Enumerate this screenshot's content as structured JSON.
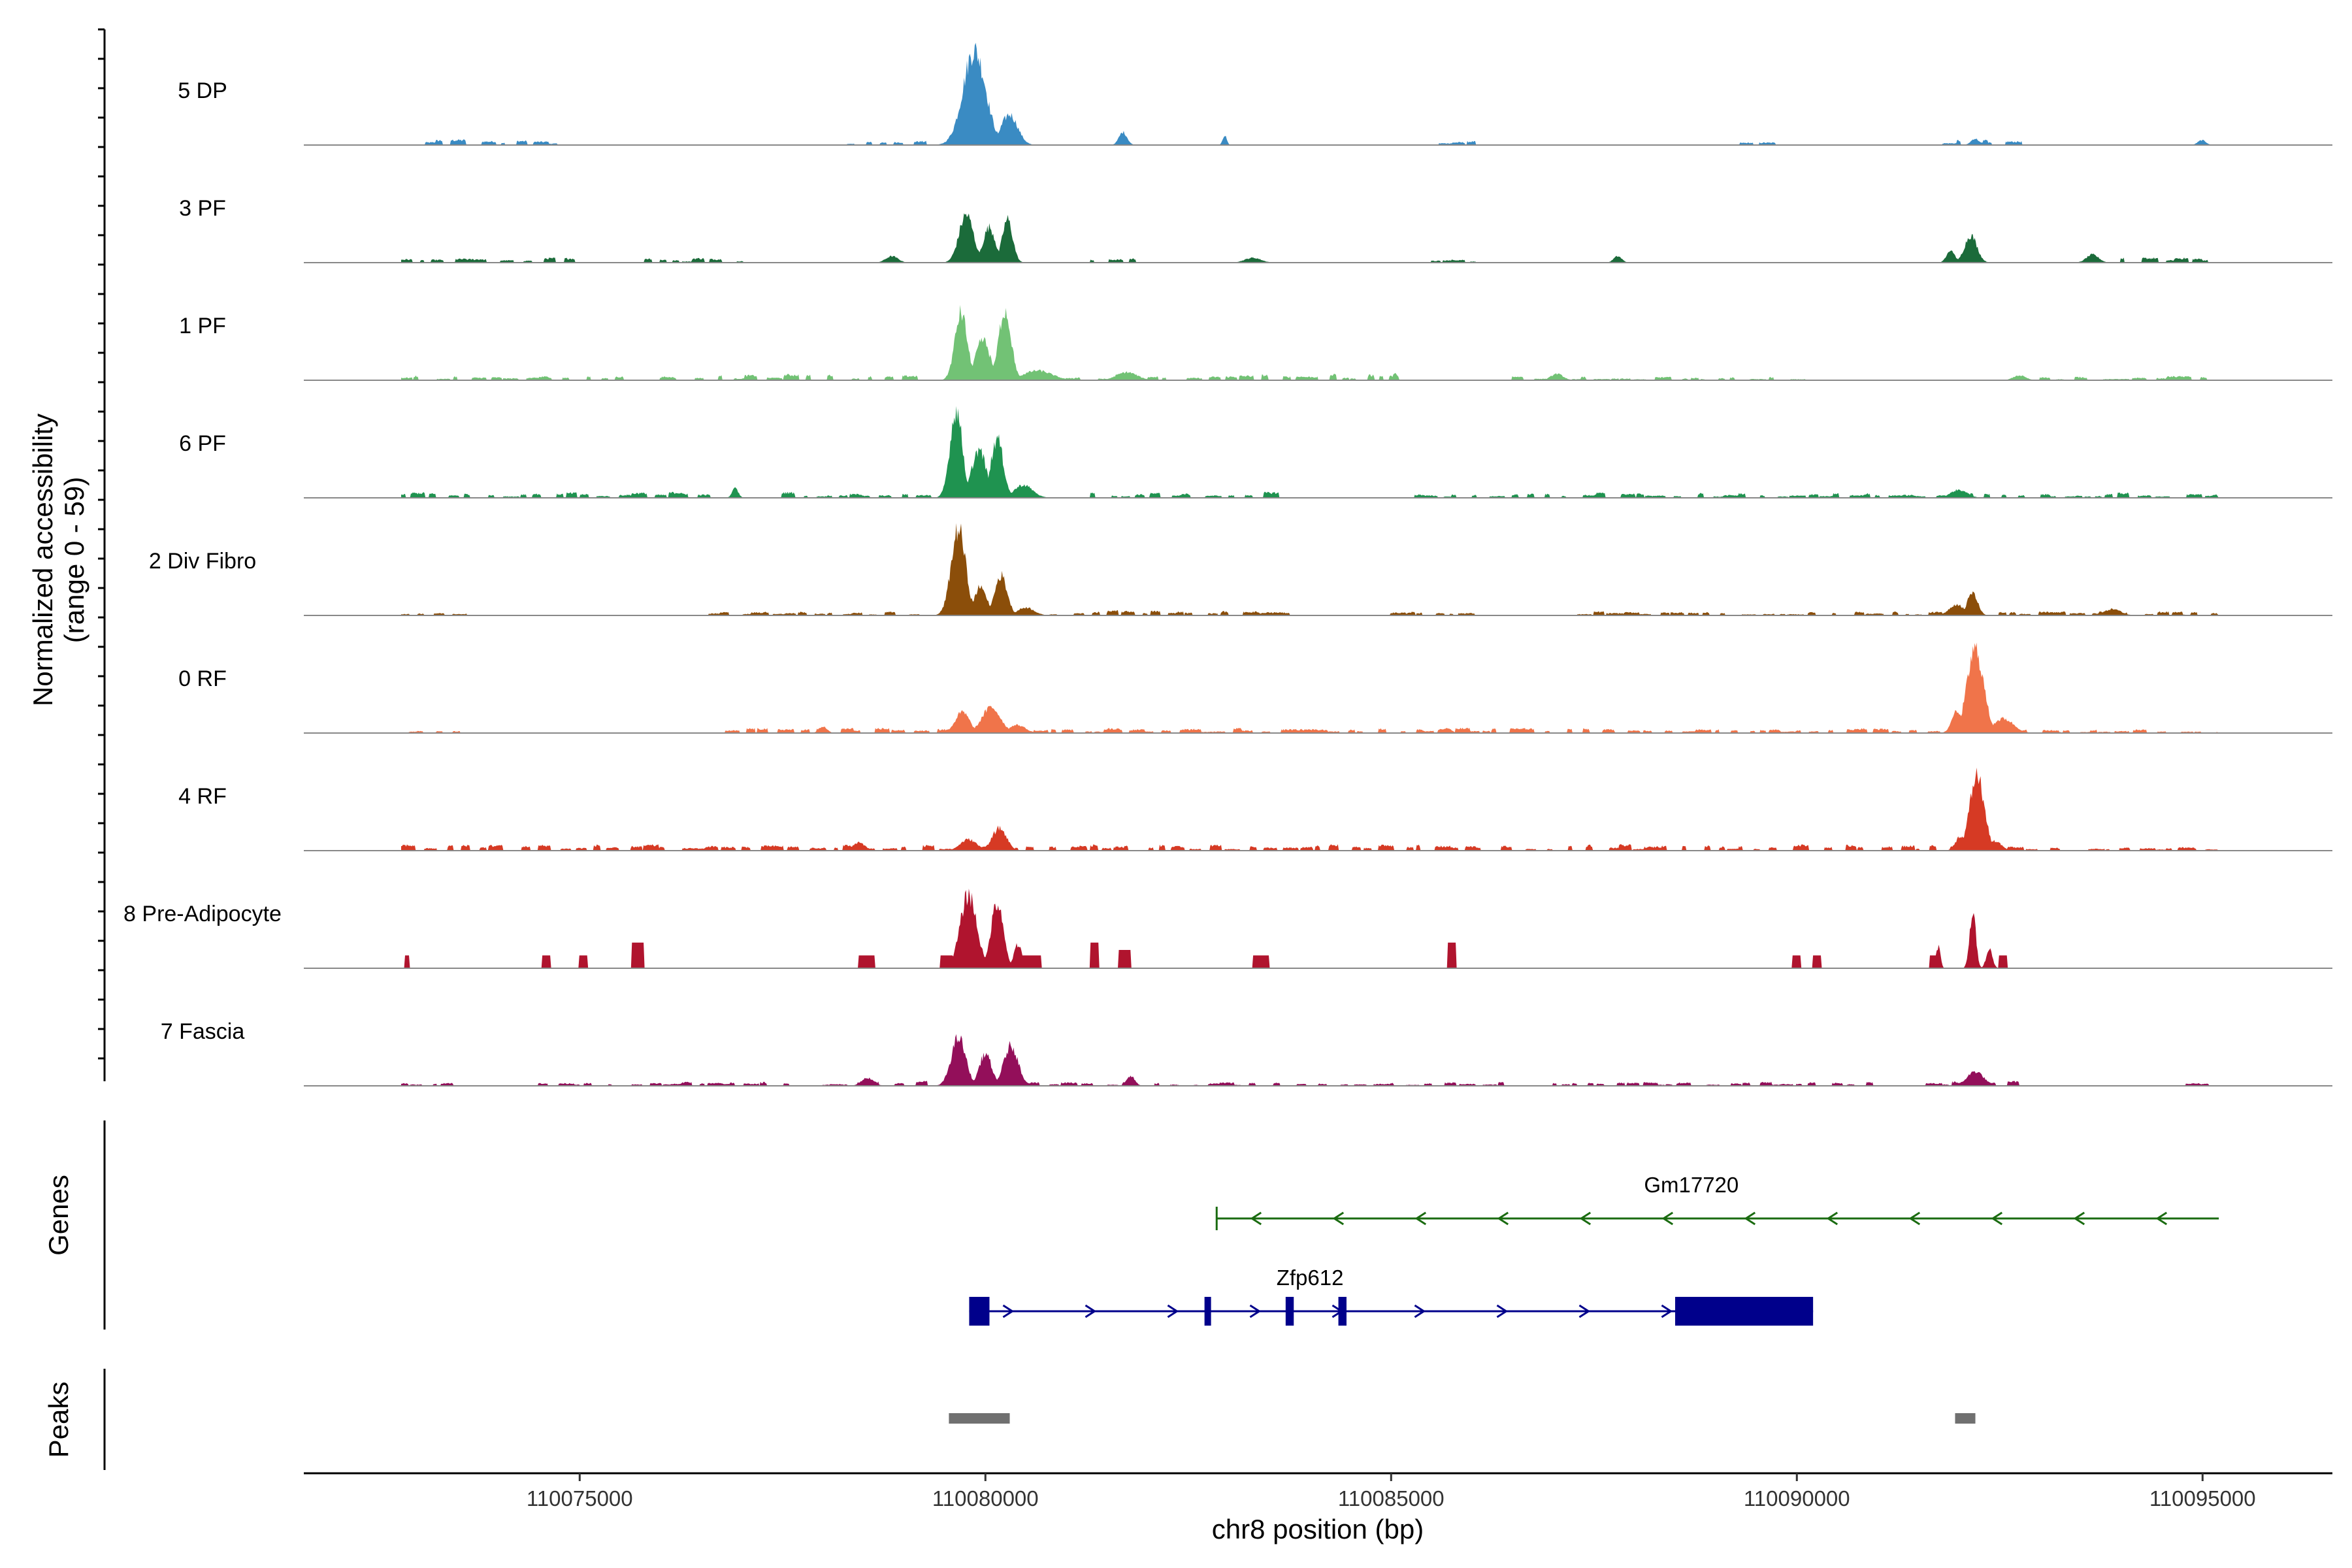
{
  "chart_data": {
    "type": "area",
    "title": "",
    "xlabel": "chr8 position (bp)",
    "ylabel_line1": "Normalized accessibility",
    "ylabel_line2": "(range 0 - 59)",
    "xlim": [
      110071600,
      110096600
    ],
    "x_ticks": [
      110075000,
      110080000,
      110085000,
      110090000,
      110095000
    ],
    "x_tick_labels": [
      "110075000",
      "110080000",
      "110085000",
      "110090000",
      "110095000"
    ],
    "ylim": [
      0,
      59
    ],
    "region_start": 110072800,
    "region_end": 110095200,
    "series": [
      {
        "name": "5 DP",
        "color": "#3A8BC3",
        "peaks": [
          [
            110079600,
            110080150,
            59,
            40
          ],
          [
            110080100,
            110080500,
            19,
            25
          ],
          [
            110081600,
            110081800,
            8,
            15
          ],
          [
            110082900,
            110083000,
            6,
            8
          ],
          [
            110092100,
            110092300,
            4,
            10
          ],
          [
            110094900,
            110095100,
            3,
            10
          ]
        ],
        "noise": [
          [
            110073100,
            110073500,
            3
          ],
          [
            110073800,
            110074600,
            2.5
          ],
          [
            110078300,
            110079200,
            2.5
          ],
          [
            110085600,
            110086000,
            2
          ],
          [
            110089300,
            110089700,
            2
          ],
          [
            110091800,
            110092600,
            2.5
          ]
        ]
      },
      {
        "name": "3 PF",
        "color": "#1B6B3A",
        "peaks": [
          [
            110079600,
            110079950,
            30,
            35
          ],
          [
            110079900,
            110080200,
            22,
            30
          ],
          [
            110080150,
            110080400,
            27,
            30
          ],
          [
            110078700,
            110079000,
            4,
            12
          ],
          [
            110083100,
            110083500,
            3,
            10
          ],
          [
            110087700,
            110087900,
            4,
            8
          ],
          [
            110092000,
            110092300,
            17,
            20
          ],
          [
            110091800,
            110092000,
            8,
            10
          ],
          [
            110093500,
            110093800,
            5,
            10
          ]
        ],
        "noise": [
          [
            110072800,
            110075000,
            2.5
          ],
          [
            110075800,
            110077000,
            2.5
          ],
          [
            110081300,
            110081800,
            3
          ],
          [
            110085500,
            110086000,
            2
          ],
          [
            110094000,
            110095200,
            2.5
          ]
        ]
      },
      {
        "name": "1 PF",
        "color": "#72C275",
        "peaks": [
          [
            110079550,
            110079850,
            42,
            30
          ],
          [
            110079800,
            110080150,
            25,
            30
          ],
          [
            110080100,
            110080400,
            44,
            30
          ],
          [
            110080300,
            110081000,
            6,
            60
          ],
          [
            110081500,
            110082000,
            5,
            30
          ],
          [
            110085000,
            110085100,
            5,
            8
          ],
          [
            110086900,
            110087200,
            4,
            12
          ],
          [
            110092600,
            110092900,
            3,
            10
          ]
        ],
        "noise": [
          [
            110072800,
            110075500,
            2.5
          ],
          [
            110076000,
            110079200,
            3.5
          ],
          [
            110081000,
            110085000,
            3
          ],
          [
            110086500,
            110090000,
            2
          ],
          [
            110093000,
            110095200,
            2
          ]
        ]
      },
      {
        "name": "6 PF",
        "color": "#1F9350",
        "peaks": [
          [
            110079500,
            110079800,
            55,
            30
          ],
          [
            110079750,
            110080100,
            30,
            30
          ],
          [
            110080000,
            110080300,
            37,
            30
          ],
          [
            110080250,
            110080700,
            8,
            30
          ],
          [
            110076850,
            110077000,
            6,
            5
          ],
          [
            110091800,
            110092200,
            5,
            15
          ]
        ],
        "noise": [
          [
            110072800,
            110076500,
            3
          ],
          [
            110077500,
            110079300,
            3
          ],
          [
            110081300,
            110083500,
            3
          ],
          [
            110085300,
            110095200,
            2.5
          ]
        ]
      },
      {
        "name": "2 Div Fibro",
        "color": "#8B4E0A",
        "peaks": [
          [
            110079500,
            110079850,
            54,
            25
          ],
          [
            110079800,
            110080100,
            18,
            25
          ],
          [
            110080050,
            110080350,
            25,
            25
          ],
          [
            110080300,
            110080700,
            5,
            25
          ],
          [
            110091800,
            110092150,
            7,
            12
          ],
          [
            110092050,
            110092300,
            14,
            15
          ],
          [
            110093700,
            110094100,
            4,
            12
          ]
        ],
        "noise": [
          [
            110072800,
            110073600,
            2.5
          ],
          [
            110076600,
            110079300,
            2
          ],
          [
            110080800,
            110083800,
            2.5
          ],
          [
            110085000,
            110086000,
            2
          ],
          [
            110087300,
            110091800,
            2
          ],
          [
            110092500,
            110095200,
            2
          ]
        ]
      },
      {
        "name": "0 RF",
        "color": "#F0744A",
        "peaks": [
          [
            110079550,
            110079900,
            13,
            25
          ],
          [
            110079850,
            110080300,
            16,
            25
          ],
          [
            110080200,
            110080600,
            5,
            30
          ],
          [
            110092000,
            110092400,
            52,
            20
          ],
          [
            110091850,
            110092100,
            14,
            20
          ],
          [
            110092300,
            110092800,
            9,
            30
          ],
          [
            110077900,
            110078100,
            4,
            8
          ],
          [
            110085600,
            110085800,
            3,
            8
          ]
        ],
        "noise": [
          [
            110072900,
            110073500,
            1.5
          ],
          [
            110076800,
            110079500,
            2.5
          ],
          [
            110080600,
            110091800,
            2.5
          ],
          [
            110092800,
            110095200,
            2
          ]
        ]
      },
      {
        "name": "4 RF",
        "color": "#D63A24",
        "peaks": [
          [
            110079600,
            110080000,
            7,
            25
          ],
          [
            110080000,
            110080350,
            14,
            25
          ],
          [
            110092050,
            110092400,
            47,
            20
          ],
          [
            110091900,
            110092150,
            9,
            20
          ],
          [
            110092300,
            110092600,
            6,
            25
          ],
          [
            110078300,
            110078600,
            5,
            12
          ]
        ],
        "noise": [
          [
            110072800,
            110092000,
            3
          ],
          [
            110092600,
            110093200,
            2.5
          ],
          [
            110093600,
            110095200,
            2
          ]
        ]
      },
      {
        "name": "8 Pre-Adipocyte",
        "color": "#B0142E",
        "peaks": [
          [
            110079600,
            110080000,
            46,
            12
          ],
          [
            110080000,
            110080300,
            40,
            12
          ],
          [
            110080300,
            110080500,
            15,
            10
          ],
          [
            110092100,
            110092250,
            35,
            12
          ],
          [
            110092300,
            110092450,
            12,
            10
          ],
          [
            110091700,
            110091800,
            14,
            8
          ]
        ],
        "noise": [],
        "blocks": [
          [
            110072850,
            110072900,
            7
          ],
          [
            110074550,
            110074650,
            7
          ],
          [
            110075000,
            110075100,
            7
          ],
          [
            110075650,
            110075800,
            14
          ],
          [
            110078450,
            110078650,
            7
          ],
          [
            110079450,
            110079600,
            7
          ],
          [
            110080450,
            110080700,
            7
          ],
          [
            110081300,
            110081400,
            14
          ],
          [
            110081650,
            110081800,
            10
          ],
          [
            110083300,
            110083500,
            7
          ],
          [
            110085700,
            110085800,
            14
          ],
          [
            110089950,
            110090050,
            7
          ],
          [
            110090200,
            110090300,
            7
          ],
          [
            110091650,
            110091750,
            7
          ],
          [
            110092500,
            110092600,
            7
          ]
        ]
      },
      {
        "name": "7 Fascia",
        "color": "#930F5A",
        "peaks": [
          [
            110079500,
            110079850,
            30,
            25
          ],
          [
            110079850,
            110080150,
            20,
            25
          ],
          [
            110080150,
            110080500,
            25,
            25
          ],
          [
            110078400,
            110078700,
            5,
            12
          ],
          [
            110081700,
            110081900,
            6,
            12
          ],
          [
            110092000,
            110092400,
            9,
            15
          ]
        ],
        "noise": [
          [
            110072800,
            110073300,
            2.5
          ],
          [
            110074500,
            110077700,
            2
          ],
          [
            110078000,
            110079400,
            2.5
          ],
          [
            110080500,
            110086500,
            2
          ],
          [
            110087000,
            110089000,
            2
          ],
          [
            110089200,
            110091000,
            2
          ],
          [
            110091600,
            110092700,
            2.5
          ],
          [
            110094800,
            110095000,
            1.5
          ]
        ]
      }
    ],
    "genes": [
      {
        "name": "Gm17720",
        "strand": "-",
        "start": 110082850,
        "end": 110095200,
        "color": "#1A6B10",
        "exons": []
      },
      {
        "name": "Zfp612",
        "strand": "+",
        "start": 110079800,
        "end": 110090200,
        "color": "#00008B",
        "exons": [
          [
            110079800,
            110080050
          ],
          [
            110082700,
            110082750
          ],
          [
            110083700,
            110083800
          ],
          [
            110084350,
            110084450
          ],
          [
            110088500,
            110090200
          ]
        ]
      }
    ],
    "peaks_track": [
      [
        110079550,
        110080300
      ],
      [
        110091950,
        110092200
      ]
    ],
    "track_labels": {
      "genes": "Genes",
      "peaks": "Peaks"
    }
  }
}
